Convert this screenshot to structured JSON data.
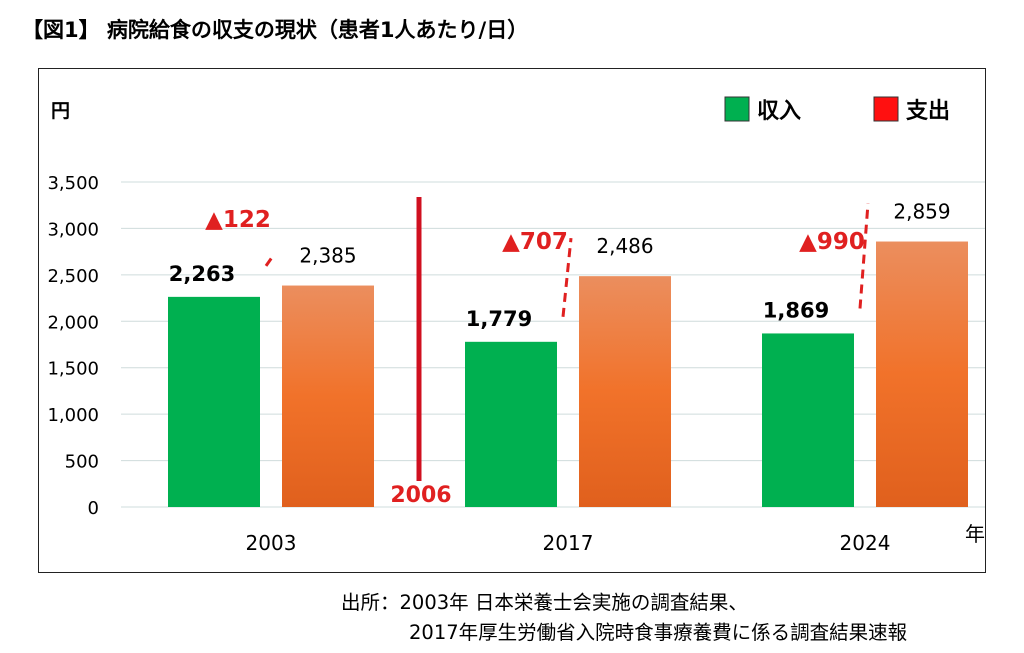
{
  "title": "【図1】 病院給食の収支の現状（患者1人あたり/日）",
  "source": {
    "line1": "出所：2003年 日本栄養士会実施の調査結果、",
    "line2": "2017年厚生労働省入院時食事療養費に係る調査結果速報"
  },
  "chart_data": {
    "type": "bar",
    "title": "病院給食の収支の現状（患者1人あたり/日）",
    "ylabel": "円",
    "xlabel": "年",
    "ylim": [
      0,
      3500
    ],
    "yticks": [
      0,
      500,
      1000,
      1500,
      2000,
      2500,
      3000,
      3500
    ],
    "ytick_labels": [
      "0",
      "500",
      "1,000",
      "1,500",
      "2,000",
      "2,500",
      "3,000",
      "3,500"
    ],
    "grid": true,
    "legend_position": "top-right",
    "categories": [
      "2003",
      "2017",
      "2024"
    ],
    "series": [
      {
        "name": "収入",
        "color": "#00b050",
        "values": [
          2263,
          1779,
          1869
        ],
        "labels": [
          "2,263",
          "1,779",
          "1,869"
        ]
      },
      {
        "name": "支出",
        "color": "#f26d25",
        "values": [
          2385,
          2486,
          2859
        ],
        "labels": [
          "2,385",
          "2,486",
          "2,859"
        ]
      }
    ],
    "deficits": [
      "▲122",
      "▲707",
      "▲990"
    ],
    "deficit_color": "#e02020",
    "divider": {
      "label": "2006",
      "color": "#d01020"
    }
  }
}
